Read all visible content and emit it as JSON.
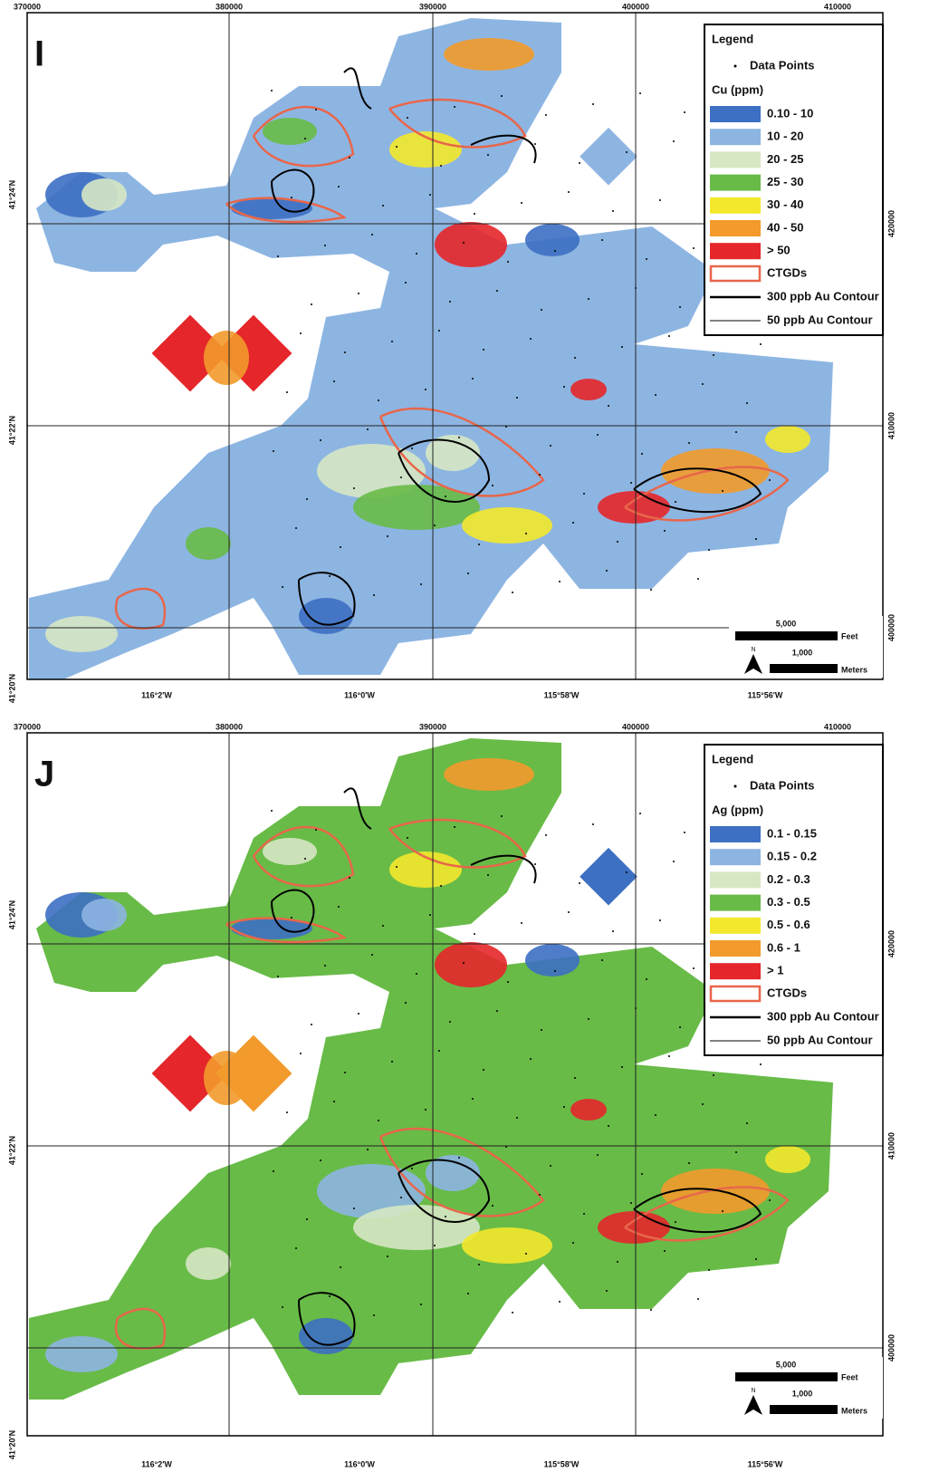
{
  "panels": [
    {
      "label": "I",
      "top_ticks": [
        370000,
        380000,
        390000,
        400000,
        410000
      ],
      "right_ticks": [
        420000,
        410000,
        400000
      ],
      "left_ticks": [
        "41°24'N",
        "41°22'N",
        "41°20'N"
      ],
      "bottom_ticks": [
        "116°2'W",
        "116°0'W",
        "115°58'W",
        "115°56'W"
      ],
      "legend": {
        "title": "Legend",
        "data_points": "Data Points",
        "element": "Cu (ppm)",
        "classes": [
          {
            "label": "0.10 - 10",
            "color": "#3d6fc3"
          },
          {
            "label": "10 - 20",
            "color": "#8db5e2"
          },
          {
            "label": "20 - 25",
            "color": "#d6e7c4"
          },
          {
            "label": "25 - 30",
            "color": "#68bb47"
          },
          {
            "label": "30 - 40",
            "color": "#f3e82c"
          },
          {
            "label": "40 - 50",
            "color": "#f29a2b"
          },
          {
            "label": "> 50",
            "color": "#e5262a"
          }
        ],
        "ctgds": "CTGDs",
        "contour_300": "300 ppb Au Contour",
        "contour_50": "50 ppb Au Contour"
      },
      "scale": {
        "feet_value": "5,000",
        "feet_unit": "Feet",
        "meters_value": "1,000",
        "meters_unit": "Meters",
        "north": "N"
      }
    },
    {
      "label": "J",
      "top_ticks": [
        370000,
        380000,
        390000,
        400000,
        410000
      ],
      "right_ticks": [
        420000,
        410000,
        400000
      ],
      "left_ticks": [
        "41°24'N",
        "41°22'N",
        "41°20'N"
      ],
      "bottom_ticks": [
        "116°2'W",
        "116°0'W",
        "115°58'W",
        "115°56'W"
      ],
      "legend": {
        "title": "Legend",
        "data_points": "Data Points",
        "element": "Ag (ppm)",
        "classes": [
          {
            "label": "0.1 - 0.15",
            "color": "#3d6fc3"
          },
          {
            "label": "0.15 - 0.2",
            "color": "#8db5e2"
          },
          {
            "label": "0.2 - 0.3",
            "color": "#d6e7c4"
          },
          {
            "label": "0.3 - 0.5",
            "color": "#68bb47"
          },
          {
            "label": "0.5 - 0.6",
            "color": "#f3e82c"
          },
          {
            "label": "0.6 - 1",
            "color": "#f29a2b"
          },
          {
            "label": "> 1",
            "color": "#e5262a"
          }
        ],
        "ctgds": "CTGDs",
        "contour_300": "300 ppb Au Contour",
        "contour_50": "50 ppb Au Contour"
      },
      "scale": {
        "feet_value": "5,000",
        "feet_unit": "Feet",
        "meters_value": "1,000",
        "meters_unit": "Meters",
        "north": "N"
      }
    }
  ]
}
